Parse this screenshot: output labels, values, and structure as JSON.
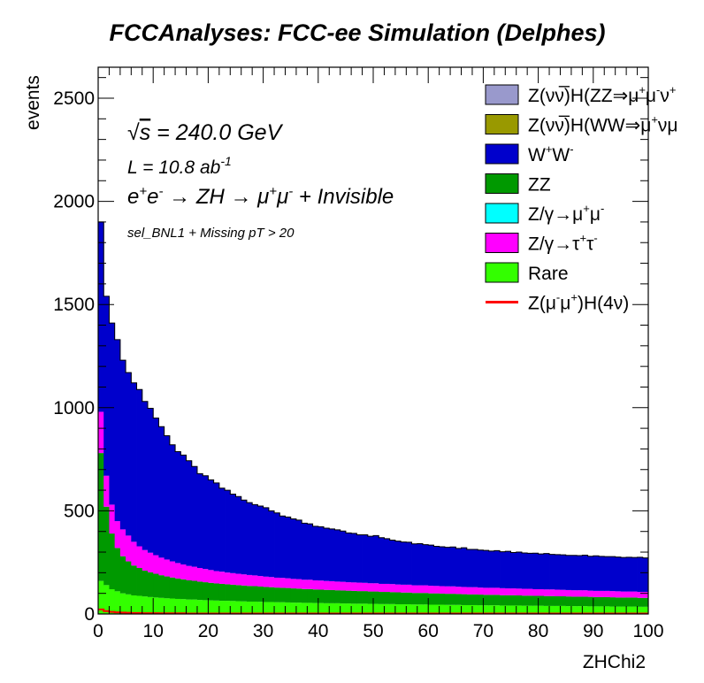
{
  "chart_data": {
    "type": "bar",
    "stacked": true,
    "title": "FCCAnalyses: FCC-ee Simulation (Delphes)",
    "xlabel": "ZHChi2",
    "ylabel": "events",
    "xlim": [
      0,
      100
    ],
    "ylim": [
      0,
      2650
    ],
    "bin_width": 1,
    "x_ticks": [
      "0",
      "10",
      "20",
      "30",
      "40",
      "50",
      "60",
      "70",
      "80",
      "90",
      "100"
    ],
    "y_ticks": [
      "0",
      "500",
      "1000",
      "1500",
      "2000",
      "2500"
    ],
    "annotations": {
      "sqrt_s": {
        "prefix": "√",
        "var": "s",
        "value": " = 240.0 GeV"
      },
      "lumi": {
        "base": "L = 10.8 ab",
        "exp": "-1"
      },
      "process": [
        "e",
        "+",
        "e",
        "-",
        " → ZH → μ",
        "+",
        "μ",
        "-",
        " + Invisible"
      ],
      "selection": "sel_BNL1 + Missing pT > 20"
    },
    "legend": {
      "position": "top-right",
      "entries": [
        {
          "parts": [
            "Z(νν̅)H(ZZ⇒μ",
            "+",
            "μ",
            "-",
            "ν",
            "+",
            ""
          ],
          "color": "#9999cc",
          "kind": "box"
        },
        {
          "parts": [
            "Z(νν̅)H(WW⇒μ",
            "+",
            "νμ",
            "",
            ""
          ],
          "color": "#999900",
          "kind": "box"
        },
        {
          "parts": [
            "W",
            "+",
            "W",
            "-",
            ""
          ],
          "color": "#0000cc",
          "kind": "box"
        },
        {
          "parts": [
            "ZZ"
          ],
          "color": "#009900",
          "kind": "box"
        },
        {
          "parts": [
            "Z/γ→μ",
            "+",
            "μ",
            "-",
            ""
          ],
          "color": "#00ffff",
          "kind": "box"
        },
        {
          "parts": [
            "Z/γ→τ",
            "+",
            "τ",
            "-",
            ""
          ],
          "color": "#ff00ff",
          "kind": "box"
        },
        {
          "parts": [
            "Rare"
          ],
          "color": "#33ff00",
          "kind": "box"
        },
        {
          "parts": [
            "Z(μ",
            "-",
            "μ",
            "+",
            ")H(4ν)"
          ],
          "color": "#ff0000",
          "kind": "line"
        }
      ]
    },
    "series": [
      {
        "name": "Rare",
        "color": "#33ff00",
        "values": [
          160,
          140,
          120,
          110,
          100,
          95,
          90,
          88,
          85,
          82,
          80,
          78,
          76,
          75,
          73,
          72,
          70,
          70,
          68,
          67,
          66,
          65,
          64,
          64,
          63,
          62,
          61,
          60,
          60,
          59,
          58,
          58,
          57,
          57,
          56,
          55,
          55,
          54,
          54,
          53,
          53,
          52,
          52,
          52,
          51,
          51,
          50,
          50,
          50,
          49,
          49,
          48,
          48,
          48,
          47,
          47,
          47,
          46,
          46,
          46,
          45,
          45,
          45,
          44,
          44,
          44,
          43,
          43,
          43,
          42,
          42,
          42,
          42,
          41,
          41,
          41,
          41,
          40,
          40,
          40,
          40,
          39,
          39,
          39,
          39,
          38,
          38,
          38,
          38,
          37,
          37,
          37,
          37,
          36,
          36,
          36,
          36,
          36,
          35,
          35
        ]
      },
      {
        "name": "ZZ",
        "color": "#009900",
        "values": [
          620,
          380,
          270,
          210,
          180,
          160,
          145,
          135,
          125,
          120,
          115,
          110,
          106,
          102,
          99,
          96,
          93,
          91,
          89,
          87,
          85,
          83,
          82,
          80,
          79,
          78,
          77,
          76,
          75,
          74,
          73,
          72,
          71,
          70,
          70,
          69,
          68,
          67,
          67,
          66,
          65,
          65,
          64,
          63,
          63,
          62,
          62,
          61,
          61,
          60,
          60,
          59,
          59,
          58,
          58,
          57,
          57,
          56,
          56,
          56,
          55,
          55,
          54,
          54,
          54,
          53,
          53,
          52,
          52,
          52,
          51,
          51,
          51,
          50,
          50,
          50,
          49,
          49,
          49,
          48,
          48,
          48,
          48,
          47,
          47,
          47,
          46,
          46,
          46,
          46,
          45,
          45,
          45,
          45,
          44,
          44,
          44,
          44,
          43,
          43
        ]
      },
      {
        "name": "Z/γ→τ+τ-",
        "color": "#ff00ff",
        "values": [
          200,
          150,
          140,
          130,
          130,
          125,
          115,
          105,
          100,
          95,
          90,
          85,
          82,
          78,
          75,
          72,
          70,
          68,
          66,
          64,
          62,
          60,
          59,
          57,
          56,
          55,
          54,
          53,
          52,
          51,
          50,
          49,
          48,
          48,
          47,
          46,
          46,
          45,
          45,
          44,
          44,
          43,
          43,
          42,
          42,
          41,
          41,
          41,
          40,
          40,
          40,
          39,
          39,
          39,
          38,
          38,
          38,
          37,
          37,
          37,
          37,
          36,
          36,
          36,
          36,
          35,
          35,
          35,
          35,
          34,
          34,
          34,
          34,
          34,
          33,
          33,
          33,
          33,
          33,
          32,
          32,
          32,
          32,
          32,
          31,
          31,
          31,
          31,
          31,
          30,
          30,
          30,
          30,
          30,
          30,
          29,
          29,
          29,
          29,
          29
        ]
      },
      {
        "name": "W+W-",
        "color": "#0000cc",
        "values": [
          920,
          870,
          880,
          880,
          820,
          790,
          770,
          760,
          720,
          700,
          665,
          635,
          600,
          565,
          540,
          530,
          510,
          486,
          457,
          452,
          437,
          427,
          405,
          399,
          383,
          374,
          360,
          351,
          343,
          339,
          334,
          321,
          314,
          300,
          297,
          291,
          286,
          274,
          271,
          262,
          261,
          256,
          253,
          251,
          246,
          239,
          238,
          232,
          233,
          228,
          231,
          224,
          219,
          213,
          210,
          207,
          206,
          201,
          202,
          197,
          197,
          192,
          191,
          189,
          191,
          186,
          190,
          183,
          183,
          182,
          181,
          178,
          180,
          177,
          180,
          174,
          177,
          174,
          172,
          175,
          171,
          174,
          170,
          170,
          170,
          168,
          169,
          168,
          170,
          167,
          170,
          167,
          166,
          167,
          166,
          165,
          166,
          165,
          168,
          165
        ]
      },
      {
        "name": "Z(μ-μ+)H(4ν)",
        "color": "#ff0000",
        "kind": "line",
        "values": [
          22,
          14,
          10,
          8,
          7,
          6,
          5,
          5,
          4,
          4,
          4,
          3,
          3,
          3,
          3,
          3,
          2,
          2,
          2,
          2,
          2,
          2,
          2,
          2,
          2,
          2,
          2,
          2,
          2,
          2,
          2,
          2,
          2,
          2,
          2,
          2,
          2,
          2,
          2,
          2,
          2,
          2,
          2,
          2,
          2,
          2,
          2,
          2,
          2,
          2,
          2,
          2,
          2,
          2,
          2,
          2,
          2,
          2,
          2,
          2,
          2,
          2,
          2,
          2,
          2,
          2,
          2,
          2,
          2,
          2,
          2,
          2,
          2,
          2,
          2,
          2,
          2,
          2,
          2,
          2,
          2,
          2,
          2,
          2,
          2,
          2,
          2,
          2,
          2,
          2,
          2,
          2,
          2,
          2,
          2,
          2,
          2,
          2,
          2,
          2
        ]
      }
    ]
  }
}
